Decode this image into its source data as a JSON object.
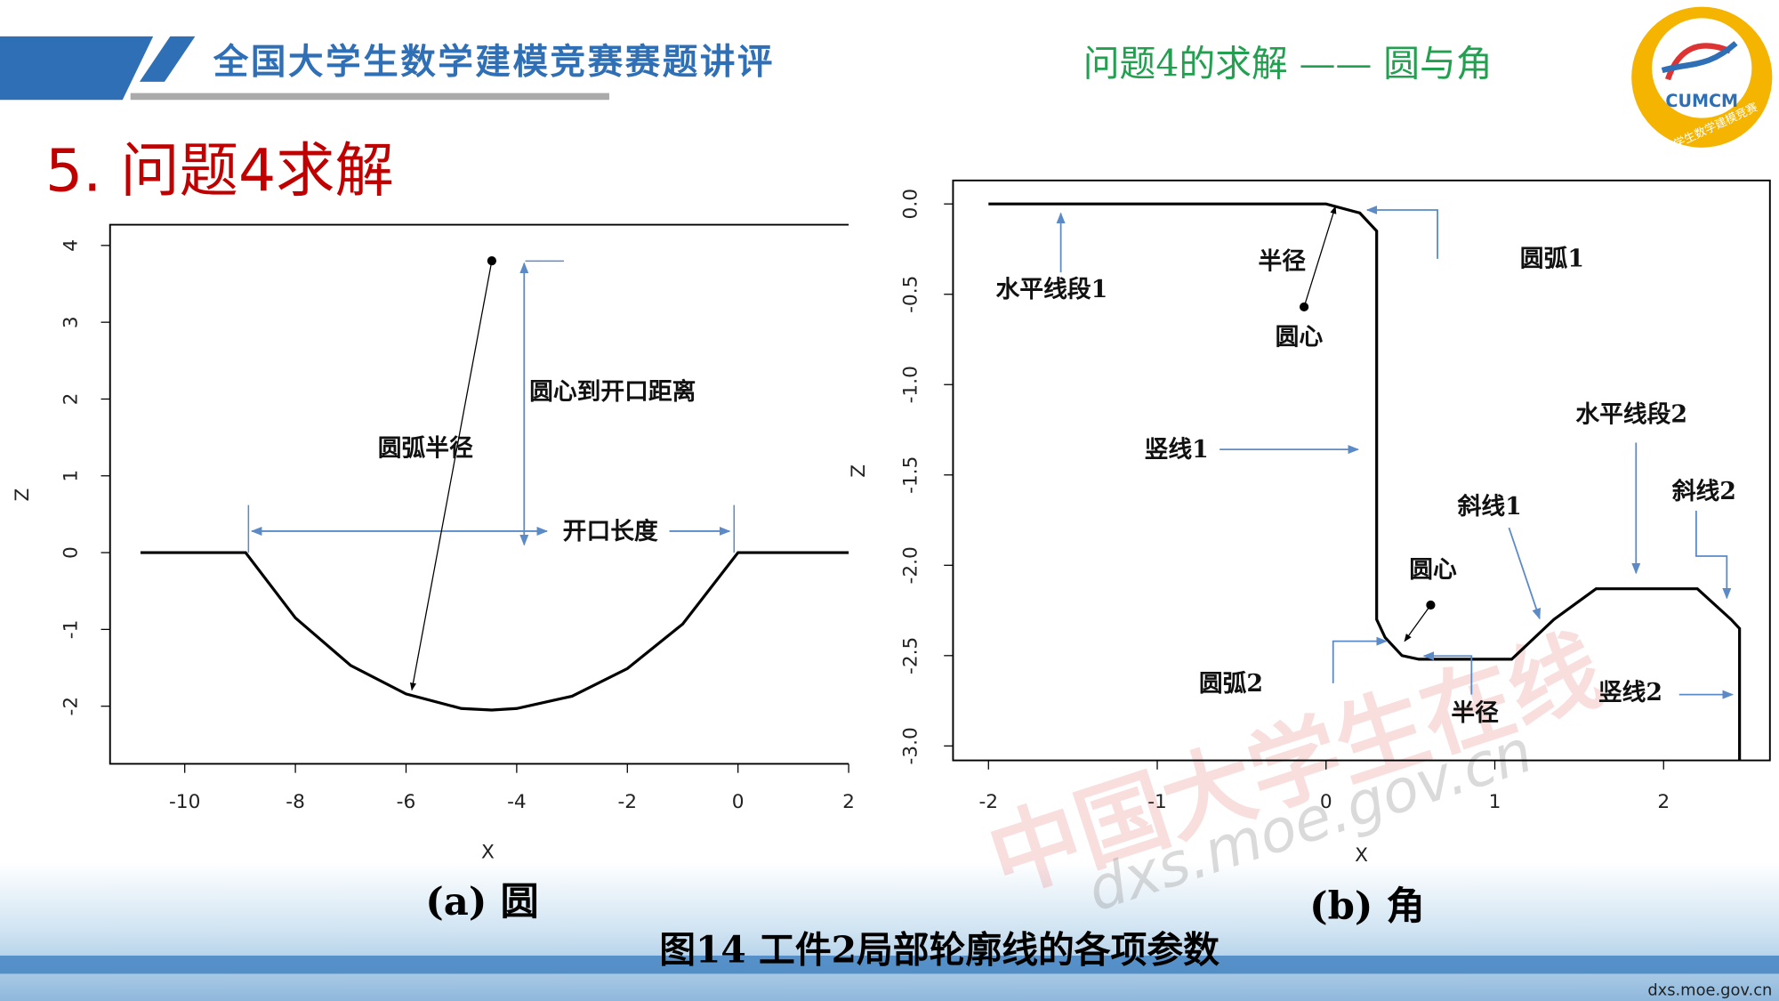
{
  "header": {
    "title": "全国大学生数学建模竞赛赛题讲评",
    "subtitle": "问题4的求解 —— 圆与角",
    "logo_text": "CUMCM",
    "logo_ring": "中国大学生数学建模竞赛"
  },
  "section_title": "5. 问题4求解",
  "chart_data": [
    {
      "type": "line",
      "x_label": "X",
      "y_label": "Z",
      "caption": "(a)  圆",
      "color": "#000000",
      "x": [
        -10.8,
        -8.9,
        -8,
        -7,
        -6,
        -5,
        -4.45,
        -4,
        -3,
        -2,
        -1,
        0,
        2
      ],
      "values": [
        0,
        0,
        -0.85,
        -1.47,
        -1.84,
        -2.03,
        -2.05,
        -2.03,
        -1.87,
        -1.51,
        -0.93,
        0,
        0
      ],
      "points": {
        "x": [
          -4.45
        ],
        "y": [
          3.8
        ]
      },
      "annotations": [
        "圆弧半径",
        "圆心到开口距离",
        "开口长度"
      ],
      "xlim": [
        -11.35,
        2
      ],
      "ylim": [
        -2.75,
        4.27
      ],
      "xticks": [
        -10,
        -8,
        -6,
        -4,
        -2,
        0,
        2
      ],
      "yticks": [
        -2,
        -1,
        0,
        1,
        2,
        3,
        4
      ]
    },
    {
      "type": "line",
      "x_label": "X",
      "y_label": "Z",
      "caption": "(b)  角",
      "color": "#000000",
      "x": [
        -2,
        0,
        0.2,
        0.3,
        0.3,
        0.35,
        0.45,
        0.55,
        1.1,
        1.35,
        1.6,
        2.2,
        2.4,
        2.45,
        2.45
      ],
      "values": [
        0,
        0,
        -0.05,
        -0.15,
        -2.3,
        -2.4,
        -2.5,
        -2.52,
        -2.52,
        -2.3,
        -2.13,
        -2.13,
        -2.3,
        -2.35,
        -3.08
      ],
      "points": {
        "x": [
          -0.13,
          0.62
        ],
        "y": [
          -0.57,
          -2.22
        ]
      },
      "annotations": [
        "水平线段1",
        "半径",
        "圆心",
        "圆弧1",
        "竖线1",
        "水平线段2",
        "斜线1",
        "斜线2",
        "圆心",
        "圆弧2",
        "半径",
        "竖线2"
      ],
      "xlim": [
        -2.21,
        2.63
      ],
      "ylim": [
        -3.08,
        0.13
      ],
      "xticks": [
        -2,
        -1,
        0,
        1,
        2
      ],
      "yticks": [
        {
          "value": 0,
          "label": "0.0"
        },
        -0.5,
        {
          "value": -1,
          "label": "-1.0"
        },
        -1.5,
        {
          "value": -2,
          "label": "-2.0"
        },
        -2.5,
        {
          "value": -3,
          "label": "-3.0"
        }
      ]
    }
  ],
  "figure_caption": "图14 工件2局部轮廓线的各项参数",
  "watermark": {
    "text": "中国大学生在线",
    "url": "dxs.moe.gov.cn"
  },
  "footer_url": "dxs.moe.gov.cn"
}
